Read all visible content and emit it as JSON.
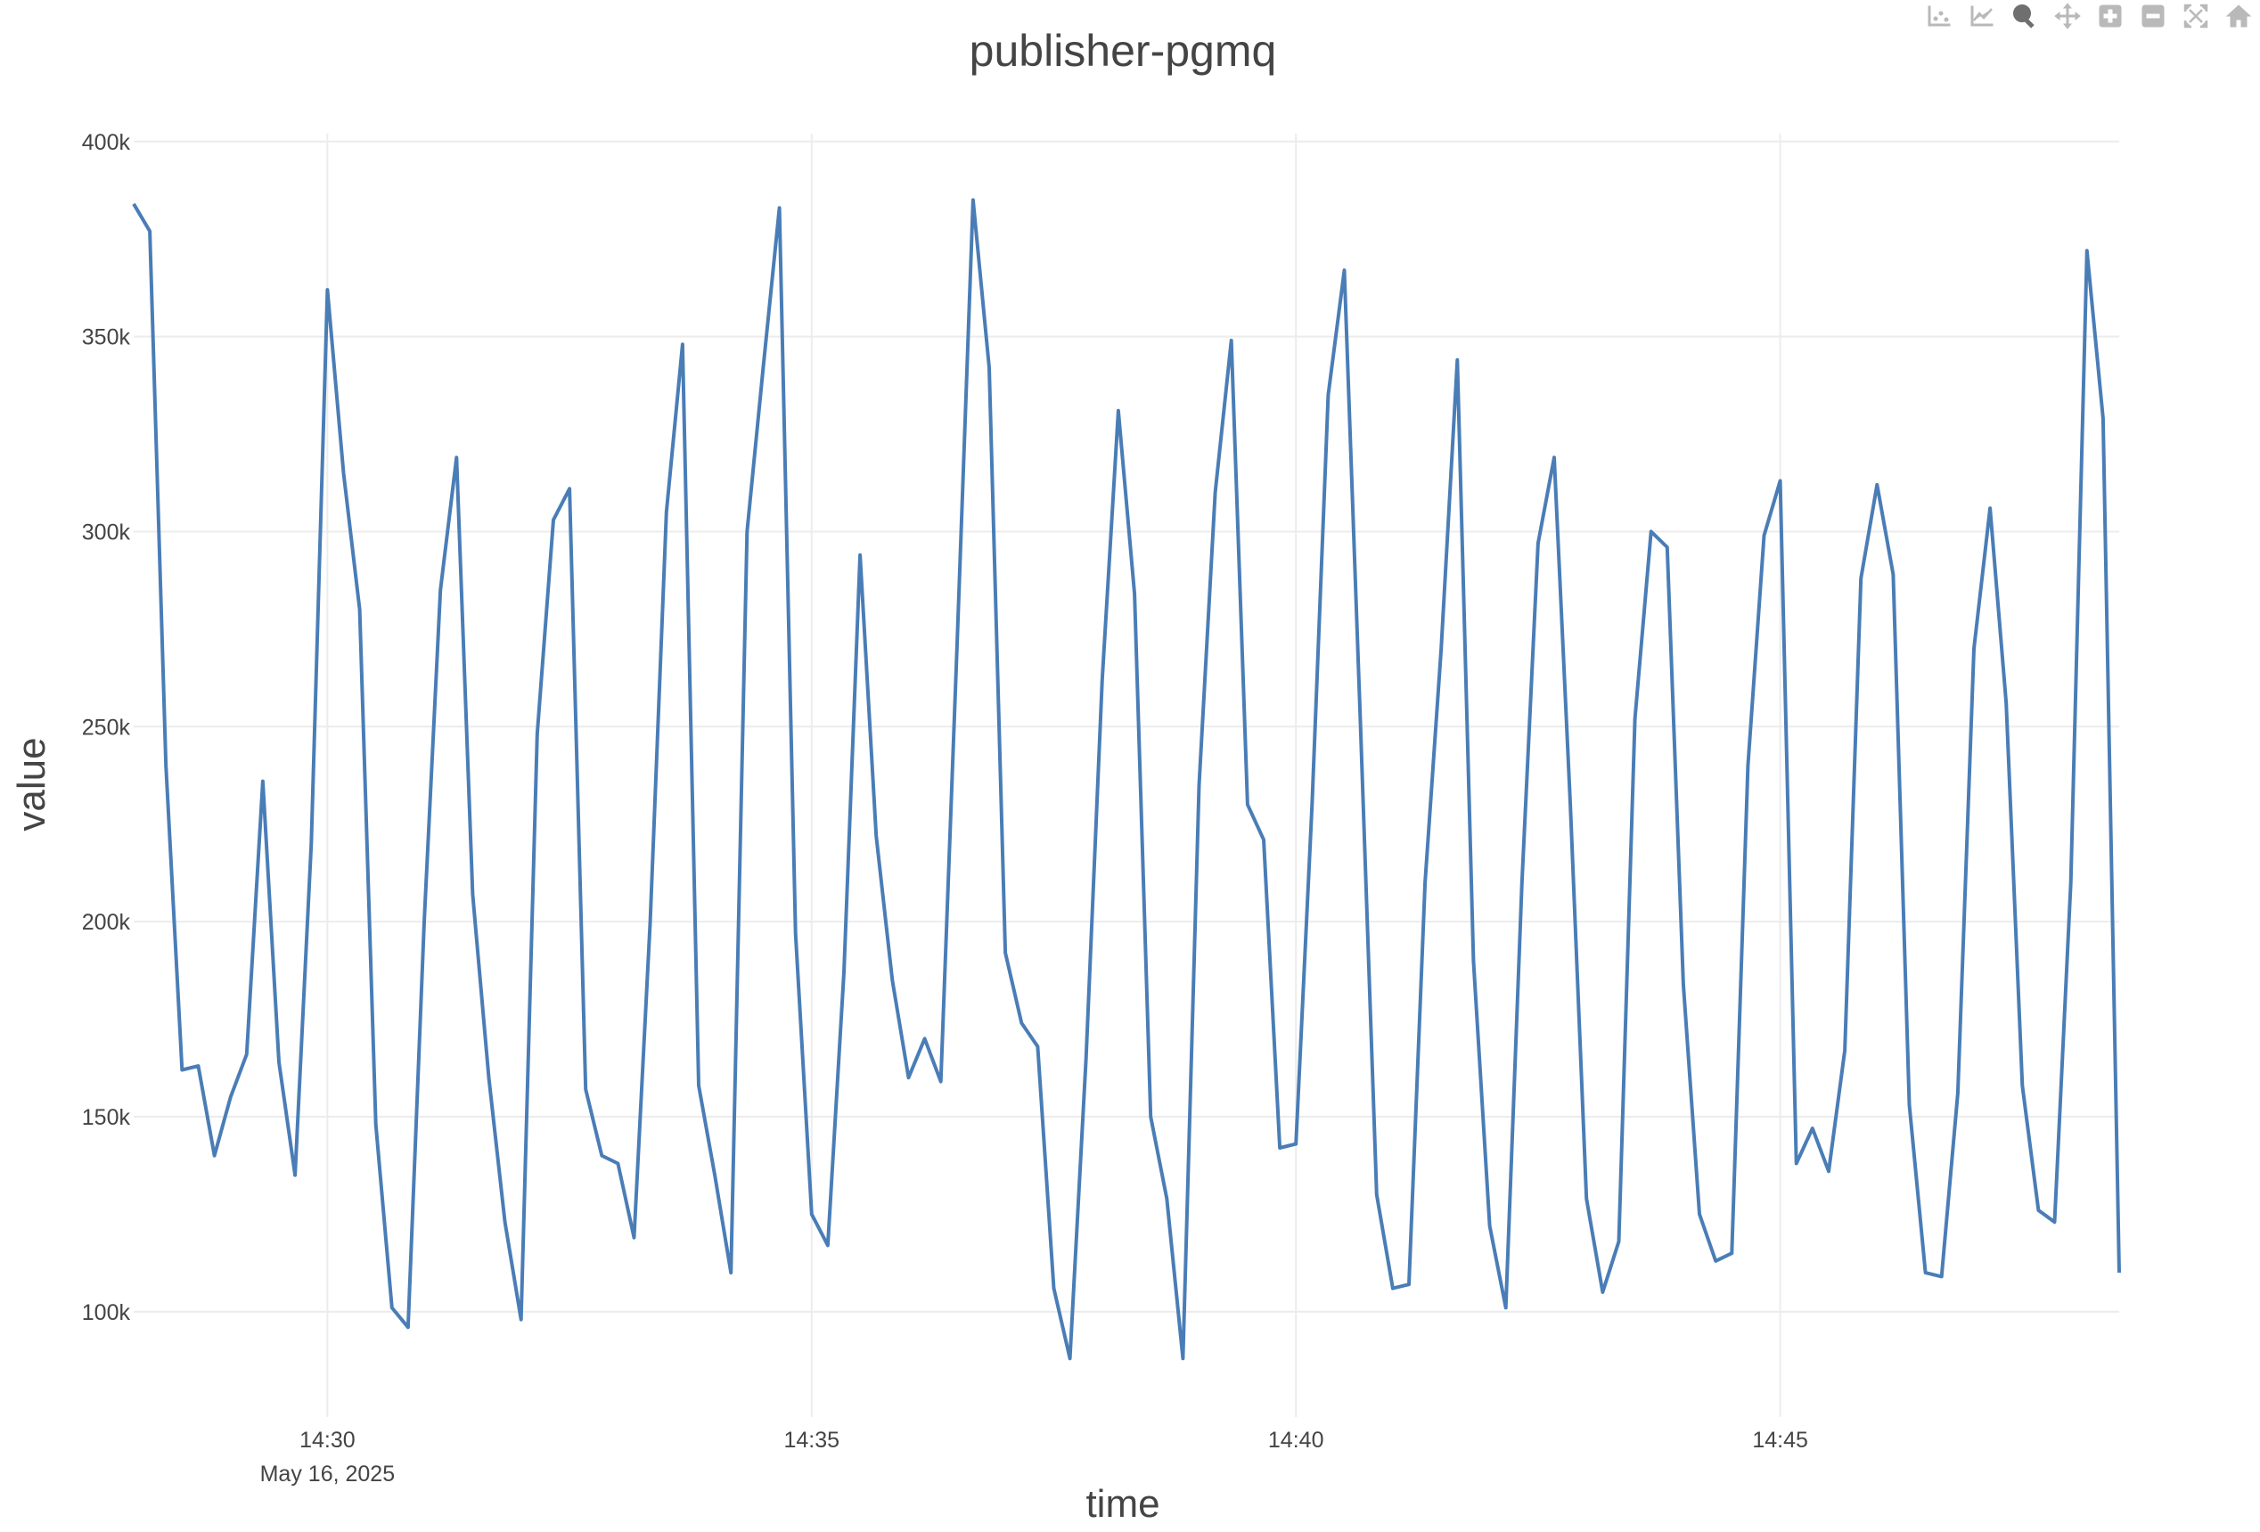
{
  "modebar": {
    "buttons": [
      {
        "icon": "show-closest-data-icon",
        "active": false
      },
      {
        "icon": "compare-data-icon",
        "active": false
      },
      {
        "icon": "zoom-icon",
        "active": true
      },
      {
        "icon": "pan-icon",
        "active": false
      },
      {
        "icon": "zoom-in-icon",
        "active": false
      },
      {
        "icon": "zoom-out-icon",
        "active": false
      },
      {
        "icon": "autoscale-icon",
        "active": false
      },
      {
        "icon": "reset-axes-icon",
        "active": false
      }
    ]
  },
  "chart_data": {
    "type": "line",
    "title": "publisher-pgmq",
    "xlabel": "time",
    "ylabel": "value",
    "x_start": "2025-05-16 14:28:00",
    "x_interval_seconds": 10,
    "x_ticks": [
      "14:30",
      "14:35",
      "14:40",
      "14:45"
    ],
    "x_tick_sublabel": "May 16, 2025",
    "y_ticks": [
      "100k",
      "150k",
      "200k",
      "250k",
      "300k",
      "350k",
      "400k"
    ],
    "xlim": [
      "2025-05-16 14:28:00",
      "2025-05-16 14:48:30"
    ],
    "ylim": [
      73000,
      402000
    ],
    "grid": true,
    "line_color": "#4a7db6",
    "series": [
      {
        "values": [
          384000,
          377000,
          240000,
          162000,
          163000,
          140000,
          155000,
          166000,
          236000,
          164000,
          135000,
          220000,
          362000,
          315000,
          280000,
          148000,
          101000,
          96000,
          200000,
          285000,
          319000,
          207000,
          160000,
          123000,
          98000,
          248000,
          303000,
          311000,
          157000,
          140000,
          138000,
          119000,
          200000,
          305000,
          348000,
          158000,
          135000,
          110000,
          300000,
          342000,
          383000,
          197000,
          125000,
          117000,
          187000,
          294000,
          222000,
          185000,
          160000,
          170000,
          159000,
          270000,
          385000,
          342000,
          192000,
          174000,
          168000,
          106000,
          88000,
          165000,
          262000,
          331000,
          284000,
          150000,
          129000,
          88000,
          235000,
          310000,
          349000,
          230000,
          221000,
          142000,
          143000,
          230000,
          335000,
          367000,
          250000,
          130000,
          106000,
          107000,
          210000,
          270000,
          344000,
          190000,
          122000,
          101000,
          210000,
          297000,
          319000,
          230000,
          129000,
          105000,
          118000,
          252000,
          300000,
          296000,
          184000,
          125000,
          113000,
          115000,
          240000,
          299000,
          313000,
          138000,
          147000,
          136000,
          167000,
          288000,
          312000,
          289000,
          153000,
          110000,
          109000,
          156000,
          270000,
          306000,
          256000,
          158000,
          126000,
          123000,
          210000,
          372000,
          329000,
          110000
        ]
      }
    ]
  }
}
